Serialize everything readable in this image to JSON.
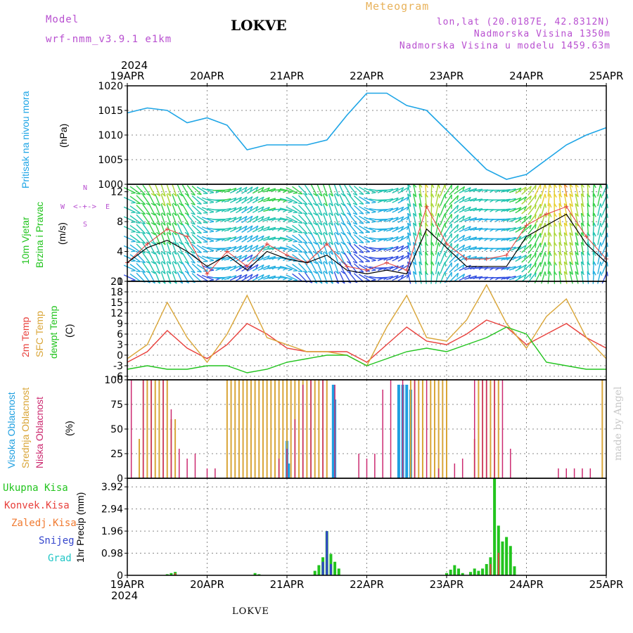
{
  "header": {
    "model_label": "Model",
    "model_name": "wrf-nmm_v3.9.1 e1km",
    "title": "LOKVE",
    "subtitle": "Meteogram",
    "coords": "lon,lat (20.0187E, 42.8312N)",
    "elevation": "Nadmorska Visina 1350m",
    "model_elevation": "Nadmorska Visina u modelu 1459.63m",
    "year_top": "2024",
    "year_bottom": "2024",
    "footer_title": "LOKVE",
    "watermark": "made by Angel"
  },
  "colors": {
    "pressure": "#1ea5e6",
    "wind_black": "#000000",
    "gust_red": "#e0403c",
    "temp2m": "#e8403c",
    "sfc": "#d9a537",
    "dewpt": "#22c41e",
    "high_cloud": "#1e9fe0",
    "mid_cloud": "#d9a537",
    "low_cloud": "#cc2a70",
    "total_precip": "#22c41e",
    "conv_precip": "#e8403c",
    "freezing": "#f07a30",
    "snow": "#3344cc",
    "graupel": "#21c6c6"
  },
  "chart_data": [
    {
      "type": "line",
      "panel": "pressure",
      "ylabel_left": "Pritisak na nivou mora",
      "ylabel_unit": "(hPa)",
      "x_tick_labels": [
        "19APR",
        "20APR",
        "21APR",
        "22APR",
        "23APR",
        "24APR",
        "25APR"
      ],
      "ylim": [
        1000,
        1020
      ],
      "y_ticks": [
        1000,
        1005,
        1010,
        1015,
        1020
      ],
      "grid": true,
      "series": [
        {
          "x_days": [
            0,
            0.25,
            0.5,
            0.75,
            1,
            1.25,
            1.5,
            1.75,
            2,
            2.25,
            2.5,
            2.75,
            3,
            3.25,
            3.5,
            3.75,
            4,
            4.25,
            4.5,
            4.75,
            5,
            5.25,
            5.5,
            5.75,
            6
          ],
          "values": [
            1014.5,
            1015.5,
            1015,
            1012.5,
            1013.5,
            1012,
            1007,
            1008,
            1008,
            1008,
            1009,
            1014,
            1018.5,
            1018.5,
            1016,
            1015,
            1011,
            1007,
            1003,
            1001,
            1002,
            1005,
            1008,
            1010,
            1011.5
          ]
        }
      ]
    },
    {
      "type": "line",
      "panel": "wind",
      "ylabel_left": "10m Vjetar",
      "ylabel_left2": "Brzina i Pravac",
      "ylabel_unit": "(m/s)",
      "compass_labels": [
        "N",
        "W",
        "E",
        "S"
      ],
      "ylim": [
        0,
        13
      ],
      "y_ticks": [
        0,
        4,
        8,
        12
      ],
      "grid": true,
      "series": [
        {
          "name_color": "black",
          "x_days": [
            0,
            0.25,
            0.5,
            0.75,
            1,
            1.25,
            1.5,
            1.75,
            2,
            2.25,
            2.5,
            2.75,
            3,
            3.25,
            3.5,
            3.75,
            4,
            4.25,
            4.5,
            4.75,
            5,
            5.25,
            5.5,
            5.75,
            6
          ],
          "values": [
            2.5,
            4.5,
            5.5,
            4,
            2,
            3.5,
            1.5,
            4,
            3,
            2.5,
            3.5,
            1.5,
            1,
            1.5,
            1,
            7,
            4.5,
            2,
            2,
            2,
            6,
            7.5,
            9,
            5,
            2.5
          ]
        },
        {
          "name_color": "red",
          "x_days": [
            0,
            0.25,
            0.5,
            0.75,
            1,
            1.25,
            1.5,
            1.75,
            2,
            2.25,
            2.5,
            2.75,
            3,
            3.25,
            3.5,
            3.75,
            4,
            4.25,
            4.5,
            4.75,
            5,
            5.25,
            5.5,
            5.75,
            6
          ],
          "values": [
            2.5,
            5,
            7,
            6,
            1,
            4,
            2,
            5,
            3.5,
            2.5,
            5,
            2,
            1.5,
            2.5,
            1.5,
            10,
            5,
            3,
            3,
            3.5,
            7.5,
            9,
            10,
            6,
            3
          ]
        }
      ]
    },
    {
      "type": "line",
      "panel": "temperature",
      "ylabel_series": [
        "2m Temp",
        "SFC Temp",
        "dewpt Temp"
      ],
      "ylabel_unit": "(C)",
      "ylim": [
        -7,
        21
      ],
      "y_ticks": [
        -6,
        -3,
        0,
        3,
        6,
        9,
        12,
        15,
        18,
        21
      ],
      "grid": true,
      "series": [
        {
          "key": "temp2m",
          "x_days": [
            0,
            0.25,
            0.5,
            0.75,
            1,
            1.25,
            1.5,
            1.75,
            2,
            2.25,
            2.5,
            2.75,
            3,
            3.25,
            3.5,
            3.75,
            4,
            4.25,
            4.5,
            4.75,
            5,
            5.25,
            5.5,
            5.75,
            6
          ],
          "values": [
            -2,
            1,
            7,
            2,
            -1,
            3,
            9,
            6,
            2,
            1,
            1,
            1,
            -2,
            3,
            8,
            4,
            3,
            6,
            10,
            8,
            3,
            6,
            9,
            5,
            2
          ]
        },
        {
          "key": "sfc",
          "x_days": [
            0,
            0.25,
            0.5,
            0.75,
            1,
            1.25,
            1.5,
            1.75,
            2,
            2.25,
            2.5,
            2.75,
            3,
            3.25,
            3.5,
            3.75,
            4,
            4.25,
            4.5,
            4.75,
            5,
            5.25,
            5.5,
            5.75,
            6
          ],
          "values": [
            -1,
            3,
            15,
            5,
            -2,
            6,
            17,
            5,
            3,
            1,
            1,
            0,
            -3,
            8,
            17,
            5,
            4,
            10,
            20,
            9,
            2,
            11,
            16,
            5,
            -1
          ]
        },
        {
          "key": "dewpt",
          "x_days": [
            0,
            0.25,
            0.5,
            0.75,
            1,
            1.25,
            1.5,
            1.75,
            2,
            2.25,
            2.5,
            2.75,
            3,
            3.25,
            3.5,
            3.75,
            4,
            4.25,
            4.5,
            4.75,
            5,
            5.25,
            5.5,
            5.75,
            6
          ],
          "values": [
            -4,
            -3,
            -4,
            -4,
            -3,
            -3,
            -5,
            -4,
            -2,
            -1,
            0,
            0,
            -3,
            -1,
            1,
            2,
            1,
            3,
            5,
            8,
            6,
            -2,
            -3,
            -4,
            -4
          ]
        }
      ]
    },
    {
      "type": "bar",
      "panel": "clouds",
      "ylabel_series": [
        "Visoka Oblacnost",
        "Srednja Oblacnost",
        "Niska Oblacnost"
      ],
      "ylabel_unit": "(%)",
      "ylim": [
        0,
        100
      ],
      "y_ticks": [
        0,
        25,
        50,
        75,
        100
      ],
      "grid": true,
      "series": [
        {
          "key": "high",
          "x_days": [
            2.0,
            2.02,
            2.58,
            2.6,
            3.4,
            3.45,
            3.5,
            3.55
          ],
          "values": [
            38,
            15,
            95,
            80,
            95,
            95,
            95,
            90
          ]
        },
        {
          "key": "mid",
          "x_days": [
            0.15,
            0.2,
            0.25,
            0.3,
            0.35,
            0.4,
            0.45,
            0.5,
            0.55,
            0.6,
            1.25,
            1.3,
            1.35,
            1.4,
            1.45,
            1.5,
            1.55,
            1.6,
            1.65,
            1.7,
            1.75,
            1.8,
            1.85,
            1.9,
            1.95,
            2.0,
            2.05,
            2.1,
            2.15,
            2.2,
            2.25,
            2.3,
            2.35,
            2.4,
            2.45,
            2.5,
            3.55,
            3.6,
            3.65,
            3.7,
            3.8,
            3.85,
            3.9,
            3.95,
            4.0,
            4.35,
            4.4,
            4.45,
            4.5,
            4.55,
            4.6,
            4.65,
            5.95
          ],
          "values": [
            40,
            100,
            100,
            100,
            100,
            100,
            100,
            100,
            60,
            60,
            100,
            100,
            100,
            100,
            100,
            100,
            100,
            100,
            100,
            100,
            100,
            100,
            100,
            100,
            100,
            100,
            100,
            100,
            100,
            100,
            100,
            100,
            100,
            100,
            100,
            100,
            100,
            100,
            100,
            100,
            100,
            100,
            100,
            100,
            100,
            40,
            100,
            100,
            100,
            100,
            100,
            100,
            100
          ]
        },
        {
          "key": "low",
          "x_days": [
            0.05,
            0.2,
            0.3,
            0.45,
            0.55,
            0.65,
            0.75,
            0.85,
            1.0,
            1.1,
            1.9,
            2.0,
            2.1,
            2.2,
            2.3,
            2.45,
            2.6,
            2.9,
            3.0,
            3.1,
            3.2,
            3.3,
            3.45,
            3.6,
            3.75,
            3.9,
            4.1,
            4.2,
            4.35,
            4.45,
            4.5,
            4.6,
            4.7,
            4.8,
            5.4,
            5.5,
            5.6,
            5.7,
            5.8
          ],
          "values": [
            100,
            100,
            100,
            100,
            70,
            30,
            20,
            25,
            10,
            10,
            20,
            30,
            60,
            95,
            100,
            100,
            95,
            25,
            20,
            25,
            90,
            100,
            100,
            100,
            100,
            10,
            15,
            20,
            100,
            100,
            100,
            100,
            100,
            30,
            10,
            10,
            10,
            10,
            10
          ]
        }
      ]
    },
    {
      "type": "bar",
      "panel": "precip",
      "ylabel_series": [
        "Ukupna Kisa",
        "Konvek.Kisa",
        "Zaledj.Kisa",
        "Snijeg",
        "Grad"
      ],
      "ylabel_unit": "1hr Precip (mm)",
      "x_tick_labels": [
        "19APR",
        "20APR",
        "21APR",
        "22APR",
        "23APR",
        "24APR",
        "25APR"
      ],
      "ylim": [
        0,
        4.3
      ],
      "y_ticks": [
        0,
        0.98,
        1.96,
        2.94,
        3.92
      ],
      "grid": true,
      "series": [
        {
          "key": "total",
          "x_days": [
            0.5,
            0.55,
            0.6,
            1.6,
            1.65,
            2.35,
            2.4,
            2.45,
            2.5,
            2.55,
            2.6,
            2.65,
            4.0,
            4.05,
            4.1,
            4.15,
            4.2,
            4.3,
            4.35,
            4.4,
            4.45,
            4.5,
            4.55,
            4.6,
            4.65,
            4.7,
            4.75,
            4.8,
            4.85
          ],
          "values": [
            0.05,
            0.1,
            0.15,
            0.1,
            0.05,
            0.2,
            0.45,
            0.8,
            1.96,
            0.95,
            0.6,
            0.3,
            0.1,
            0.25,
            0.45,
            0.3,
            0.1,
            0.15,
            0.3,
            0.2,
            0.3,
            0.5,
            0.8,
            4.3,
            2.2,
            1.5,
            1.7,
            1.3,
            0.4
          ]
        },
        {
          "key": "conv",
          "x_days": [
            0.6,
            2.5,
            4.55,
            4.65
          ],
          "values": [
            0.1,
            0.5,
            0.5,
            1.0
          ]
        },
        {
          "key": "snow",
          "x_days": [
            2.45,
            2.5,
            2.55
          ],
          "values": [
            0.6,
            1.96,
            0.5
          ]
        }
      ]
    }
  ]
}
